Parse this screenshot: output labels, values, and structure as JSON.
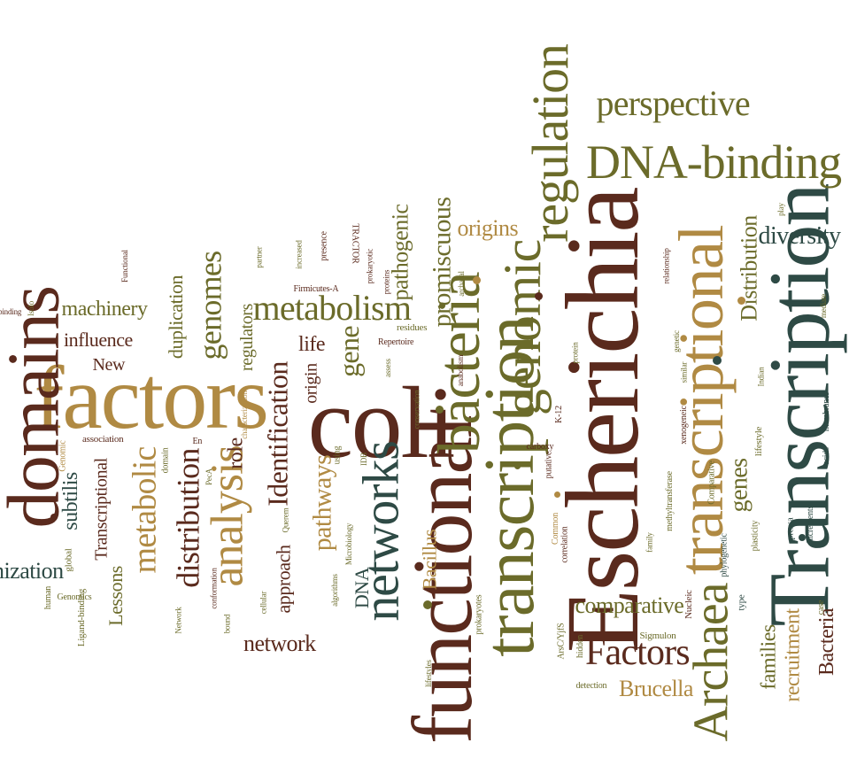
{
  "words": [
    {
      "t": "coli",
      "c": "brown"
    },
    {
      "t": "Escherichia",
      "c": "brown"
    },
    {
      "t": "functional",
      "c": "brown"
    },
    {
      "t": "transcription",
      "c": "olive"
    },
    {
      "t": "Transcription",
      "c": "teal"
    },
    {
      "t": "transcriptional",
      "c": "tan"
    },
    {
      "t": "factors",
      "c": "tan"
    },
    {
      "t": "domains",
      "c": "brown"
    },
    {
      "t": "bacteria",
      "c": "olive"
    },
    {
      "t": "genomic",
      "c": "olive"
    },
    {
      "t": "regulation",
      "c": "olive"
    },
    {
      "t": "DNA-binding",
      "c": "olive"
    },
    {
      "t": "perspective",
      "c": "olive"
    },
    {
      "t": "networks",
      "c": "teal"
    },
    {
      "t": "metabolism",
      "c": "olive"
    },
    {
      "t": "analysis",
      "c": "tan"
    },
    {
      "t": "Archaea",
      "c": "olive"
    },
    {
      "t": "Factors",
      "c": "brown"
    },
    {
      "t": "genomes",
      "c": "olive"
    },
    {
      "t": "metabolic",
      "c": "tan"
    },
    {
      "t": "distribution",
      "c": "brown"
    },
    {
      "t": "Identification",
      "c": "brown"
    },
    {
      "t": "pathways",
      "c": "tan"
    },
    {
      "t": "gene",
      "c": "olive"
    },
    {
      "t": "promiscuous",
      "c": "olive"
    },
    {
      "t": "pathogenic",
      "c": "olive"
    },
    {
      "t": "origins",
      "c": "tan"
    },
    {
      "t": "diversity",
      "c": "teal"
    },
    {
      "t": "Distribution",
      "c": "olive"
    },
    {
      "t": "genes",
      "c": "olive"
    },
    {
      "t": "families",
      "c": "olive"
    },
    {
      "t": "recruitment",
      "c": "tan"
    },
    {
      "t": "Bacteria",
      "c": "brown"
    },
    {
      "t": "comparative",
      "c": "olive"
    },
    {
      "t": "Brucella",
      "c": "tan"
    },
    {
      "t": "network",
      "c": "brown"
    },
    {
      "t": "approach",
      "c": "brown"
    },
    {
      "t": "DNA",
      "c": "teal"
    },
    {
      "t": "Bacillus",
      "c": "tan"
    },
    {
      "t": "machinery",
      "c": "olive"
    },
    {
      "t": "influence",
      "c": "brown"
    },
    {
      "t": "New",
      "c": "brown"
    },
    {
      "t": "Lessons",
      "c": "olive"
    },
    {
      "t": "duplication",
      "c": "olive"
    },
    {
      "t": "role",
      "c": "brown"
    },
    {
      "t": "life",
      "c": "brown"
    },
    {
      "t": "origin",
      "c": "brown"
    },
    {
      "t": "regulators",
      "c": "olive"
    },
    {
      "t": "subtilis",
      "c": "teal"
    },
    {
      "t": "Transcriptional",
      "c": "brown"
    },
    {
      "t": "ganization",
      "c": "teal"
    },
    {
      "t": "Genomic",
      "c": "tan"
    },
    {
      "t": "association",
      "c": "brown"
    },
    {
      "t": "Ligand-binding",
      "c": "olive"
    },
    {
      "t": "global",
      "c": "olive"
    },
    {
      "t": "Genomics",
      "c": "olive"
    },
    {
      "t": "human",
      "c": "olive"
    },
    {
      "t": "Functional",
      "c": "brown"
    },
    {
      "t": "TRACTOR",
      "c": "brown"
    },
    {
      "t": "presence",
      "c": "brown"
    },
    {
      "t": "prokaryotic",
      "c": "brown"
    },
    {
      "t": "proteins",
      "c": "brown"
    },
    {
      "t": "increased",
      "c": "olive"
    },
    {
      "t": "Firmicutes-A",
      "c": "brown"
    },
    {
      "t": "Repertoire",
      "c": "brown"
    },
    {
      "t": "residues",
      "c": "olive"
    },
    {
      "t": "anabolism",
      "c": "brown"
    },
    {
      "t": "K-12",
      "c": "brown"
    },
    {
      "t": "carboxy",
      "c": "brown"
    },
    {
      "t": "putative",
      "c": "brown"
    },
    {
      "t": "Comparative",
      "c": "olive"
    },
    {
      "t": "lifestyle",
      "c": "olive"
    },
    {
      "t": "methyltransferase",
      "c": "olive"
    },
    {
      "t": "xenogeneic",
      "c": "brown"
    },
    {
      "t": "correlation",
      "c": "brown"
    },
    {
      "t": "Common",
      "c": "tan"
    },
    {
      "t": "phylogenetic",
      "c": "teal"
    },
    {
      "t": "plasticity",
      "c": "olive"
    },
    {
      "t": "Increments",
      "c": "teal"
    },
    {
      "t": "acids",
      "c": "teal"
    },
    {
      "t": "membranes",
      "c": "teal"
    },
    {
      "t": "prensa",
      "c": "teal"
    },
    {
      "t": "Sigmulon",
      "c": "olive"
    },
    {
      "t": "Nucleic",
      "c": "brown"
    },
    {
      "t": "type",
      "c": "teal"
    },
    {
      "t": "case",
      "c": "olive"
    },
    {
      "t": "detection",
      "c": "olive"
    },
    {
      "t": "hidden",
      "c": "olive"
    },
    {
      "t": "ArsC/YjfS",
      "c": "olive"
    },
    {
      "t": "lifestyles",
      "c": "olive"
    },
    {
      "t": "prokaryotes",
      "c": "olive"
    },
    {
      "t": "Microbiology",
      "c": "olive"
    },
    {
      "t": "algorithms",
      "c": "olive"
    },
    {
      "t": "cellular",
      "c": "olive"
    },
    {
      "t": "bound",
      "c": "olive"
    },
    {
      "t": "Network",
      "c": "olive"
    },
    {
      "t": "conformation",
      "c": "brown"
    },
    {
      "t": "Querem",
      "c": "olive"
    },
    {
      "t": "PecA",
      "c": "olive"
    },
    {
      "t": "En",
      "c": "brown"
    },
    {
      "t": "domain",
      "c": "olive"
    },
    {
      "t": "IDB",
      "c": "olive"
    },
    {
      "t": "using",
      "c": "olive"
    },
    {
      "t": "characterization",
      "c": "tan"
    },
    {
      "t": "partner",
      "c": "olive"
    },
    {
      "t": "Isolo",
      "c": "olive"
    },
    {
      "t": "binding",
      "c": "brown"
    },
    {
      "t": "archaeal",
      "c": "olive"
    },
    {
      "t": "conservation",
      "c": "olive"
    },
    {
      "t": "assess",
      "c": "olive"
    },
    {
      "t": "protein",
      "c": "olive"
    },
    {
      "t": "relationship",
      "c": "brown"
    },
    {
      "t": "genetic",
      "c": "olive"
    },
    {
      "t": "similar",
      "c": "olive"
    },
    {
      "t": "Indian",
      "c": "olive"
    },
    {
      "t": "mediate",
      "c": "olive"
    },
    {
      "t": "play",
      "c": "olive"
    },
    {
      "t": "family",
      "c": "olive"
    }
  ],
  "colors": {
    "brown": "#5a2a1d",
    "olive": "#6b6b2a",
    "tan": "#b08a43",
    "teal": "#2e4a45",
    "background": "#ffffff"
  }
}
